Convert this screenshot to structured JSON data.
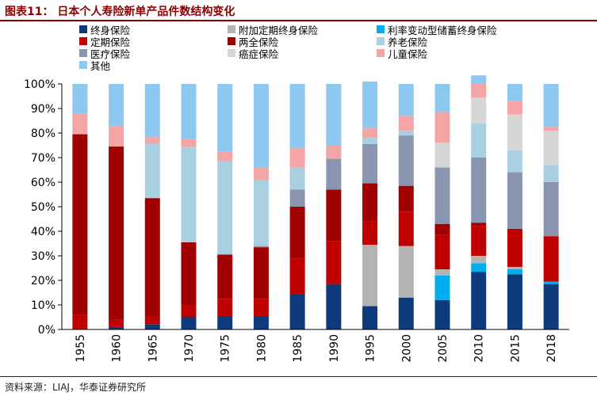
{
  "header": {
    "title": "图表11：  日本个人寿险新单产品件数结构变化"
  },
  "chart_data": {
    "type": "bar",
    "stacked": true,
    "categories": [
      "1955",
      "1960",
      "1965",
      "1970",
      "1975",
      "1980",
      "1985",
      "1990",
      "1995",
      "2000",
      "2005",
      "2010",
      "2015",
      "2018"
    ],
    "ylim": [
      0,
      100
    ],
    "yticks": [
      "0%",
      "10%",
      "20%",
      "30%",
      "40%",
      "50%",
      "60%",
      "70%",
      "80%",
      "90%",
      "100%"
    ],
    "xlabel": "",
    "ylabel": "",
    "grid": false,
    "series": [
      {
        "name": "终身保险",
        "color": "#0D3A7A",
        "values": [
          0,
          1,
          2,
          5,
          5.5,
          5.5,
          14.5,
          18.5,
          9.5,
          13,
          12,
          23.5,
          22.5,
          18.5
        ]
      },
      {
        "name": "利率变动型储蓄终身保险",
        "color": "#00AEEF",
        "values": [
          0,
          0,
          0,
          0,
          0,
          0,
          0,
          0,
          0,
          0,
          10,
          3.5,
          2,
          1
        ]
      },
      {
        "name": "附加定期终身保险",
        "color": "#B3B3B3",
        "values": [
          0,
          0,
          0,
          0,
          0,
          0,
          0,
          0,
          25,
          21,
          2.5,
          3,
          1,
          0
        ]
      },
      {
        "name": "定期保险",
        "color": "#C00000",
        "values": [
          6,
          3,
          3.5,
          5,
          7,
          7,
          14.5,
          17.5,
          9.5,
          14,
          14,
          12,
          15.5,
          18.5
        ]
      },
      {
        "name": "两全保险",
        "color": "#A00000",
        "values": [
          73.5,
          70.5,
          48,
          25.5,
          18,
          21,
          21,
          21,
          15.5,
          10.5,
          4.5,
          1.5,
          0,
          0
        ]
      },
      {
        "name": "医疗保险",
        "color": "#8A95B0",
        "values": [
          0,
          0,
          0,
          0,
          0,
          0.5,
          7,
          12.5,
          16,
          20.5,
          23,
          26.5,
          23,
          22
        ]
      },
      {
        "name": "养老保险",
        "color": "#A9D0E0",
        "values": [
          0,
          0,
          22,
          39,
          38,
          27,
          9,
          0,
          2.5,
          2,
          0,
          14,
          9,
          7
        ]
      },
      {
        "name": "癌症保险",
        "color": "#D6D6D6",
        "values": [
          0,
          0,
          0,
          0,
          0,
          0,
          0,
          0,
          0,
          0,
          10,
          10.5,
          14.5,
          14
        ]
      },
      {
        "name": "儿童保险",
        "color": "#F4A6A6",
        "values": [
          8.5,
          8.5,
          3,
          3,
          4,
          5,
          8,
          5.5,
          4,
          6,
          12.5,
          5.5,
          5.5,
          1.5
        ]
      },
      {
        "name": "其他",
        "color": "#8CC8F0",
        "values": [
          12,
          17,
          21.5,
          22.5,
          27.5,
          34,
          26,
          25,
          19,
          13,
          11.5,
          3.5,
          7,
          17.5
        ]
      }
    ]
  },
  "legend": {
    "items": [
      {
        "label": "终身保险",
        "color": "#0D3A7A"
      },
      {
        "label": "附加定期终身保险",
        "color": "#B3B3B3"
      },
      {
        "label": "利率变动型储蓄终身保险",
        "color": "#00AEEF"
      },
      {
        "label": "定期保险",
        "color": "#C00000"
      },
      {
        "label": "两全保险",
        "color": "#A00000"
      },
      {
        "label": "养老保险",
        "color": "#A9D0E0"
      },
      {
        "label": "医疗保险",
        "color": "#8A95B0"
      },
      {
        "label": "癌症保险",
        "color": "#D6D6D6"
      },
      {
        "label": "儿童保险",
        "color": "#F4A6A6"
      },
      {
        "label": "其他",
        "color": "#8CC8F0"
      }
    ]
  },
  "footer": {
    "source": "资料来源：LIAJ，华泰证券研究所"
  }
}
